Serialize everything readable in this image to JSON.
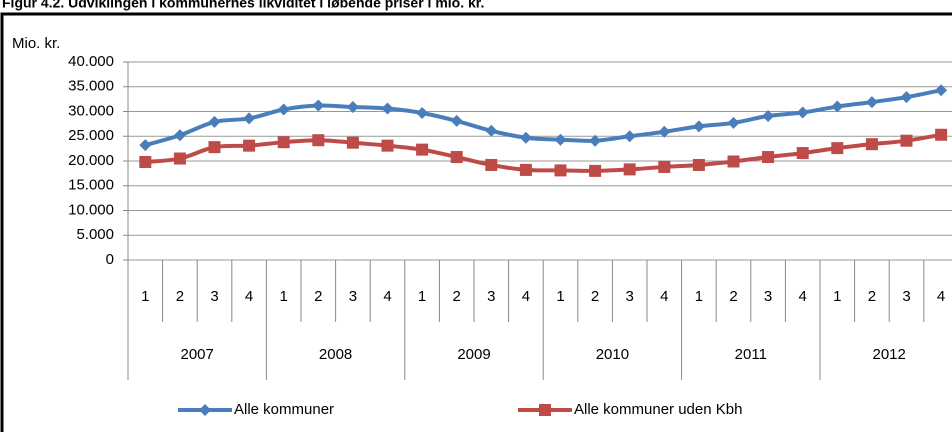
{
  "chart_data": {
    "type": "line",
    "title": "Figur 4.2. Udviklingen i kommunernes likviditet i løbende priser i mio. kr.",
    "ylabel": "Mio. kr.",
    "categories": [
      "1",
      "2",
      "3",
      "4",
      "1",
      "2",
      "3",
      "4",
      "1",
      "2",
      "3",
      "4",
      "1",
      "2",
      "3",
      "4",
      "1",
      "2",
      "3",
      "4",
      "1",
      "2",
      "3",
      "4"
    ],
    "groups": [
      "2007",
      "2008",
      "2009",
      "2010",
      "2011",
      "2012"
    ],
    "series": [
      {
        "name": "Alle kommuner",
        "color": "#4a7ebb",
        "marker": "diamond",
        "values": [
          23200,
          25200,
          27900,
          28600,
          30400,
          31200,
          30900,
          30600,
          29700,
          28100,
          26100,
          24700,
          24300,
          24100,
          25000,
          25900,
          27000,
          27700,
          29100,
          29800,
          31000,
          31900,
          32900,
          34300
        ]
      },
      {
        "name": "Alle kommuner uden Kbh",
        "color": "#be4b48",
        "marker": "square",
        "values": [
          19800,
          20500,
          22800,
          23100,
          23800,
          24200,
          23700,
          23100,
          22300,
          20800,
          19200,
          18200,
          18100,
          18000,
          18300,
          18800,
          19200,
          19900,
          20800,
          21600,
          22600,
          23400,
          24100,
          25300
        ]
      }
    ],
    "ylim": [
      0,
      40000
    ],
    "yticks": [
      0,
      {
        "value": 5000,
        "label": "5.000"
      },
      {
        "value": 10000,
        "label": "10.000"
      },
      {
        "value": 15000,
        "label": "15.000"
      },
      {
        "value": 20000,
        "label": "20.000"
      },
      {
        "value": 25000,
        "label": "25.000"
      },
      {
        "value": 30000,
        "label": "30.000"
      },
      {
        "value": 35000,
        "label": "35.000"
      },
      {
        "value": 40000,
        "label": "40.000"
      }
    ],
    "grid": true,
    "legend": "bottom"
  }
}
